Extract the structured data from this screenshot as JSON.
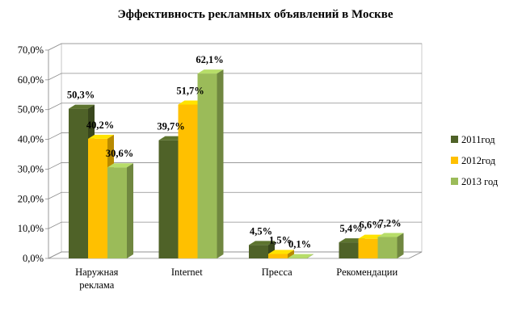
{
  "chart_data": {
    "type": "bar",
    "title": "Эффективность рекламных объявлений в Москве",
    "categories": [
      "Наружная реклама",
      "Internet",
      "Пресса",
      "Рекомендации"
    ],
    "category_lines": [
      [
        "Наружная",
        "реклама"
      ],
      [
        "Internet"
      ],
      [
        "Пресса"
      ],
      [
        "Рекомендации"
      ]
    ],
    "series": [
      {
        "name": "2011год",
        "values": [
          50.3,
          39.7,
          4.5,
          5.4
        ],
        "labels": [
          "50,3%",
          "39,7%",
          "4,5%",
          "5,4%"
        ],
        "color": "#4f6228"
      },
      {
        "name": "2012год",
        "values": [
          40.2,
          51.7,
          1.5,
          6.6
        ],
        "labels": [
          "40,2%",
          "51,7%",
          "1,5%",
          "6,6%"
        ],
        "color": "#ffc000"
      },
      {
        "name": "2013 год",
        "values": [
          30.6,
          62.1,
          0.1,
          7.2
        ],
        "labels": [
          "30,6%",
          "62,1%",
          "0,1%",
          "7,2%"
        ],
        "color": "#9bbb59"
      }
    ],
    "ylim": [
      0,
      70
    ],
    "yticks": [
      0,
      10,
      20,
      30,
      40,
      50,
      60,
      70
    ],
    "ytick_labels": [
      "0,0%",
      "10,0%",
      "20,0%",
      "30,0%",
      "40,0%",
      "50,0%",
      "60,0%",
      "70,0%"
    ],
    "grid": true,
    "legend_position": "right",
    "style": "3d-column"
  }
}
